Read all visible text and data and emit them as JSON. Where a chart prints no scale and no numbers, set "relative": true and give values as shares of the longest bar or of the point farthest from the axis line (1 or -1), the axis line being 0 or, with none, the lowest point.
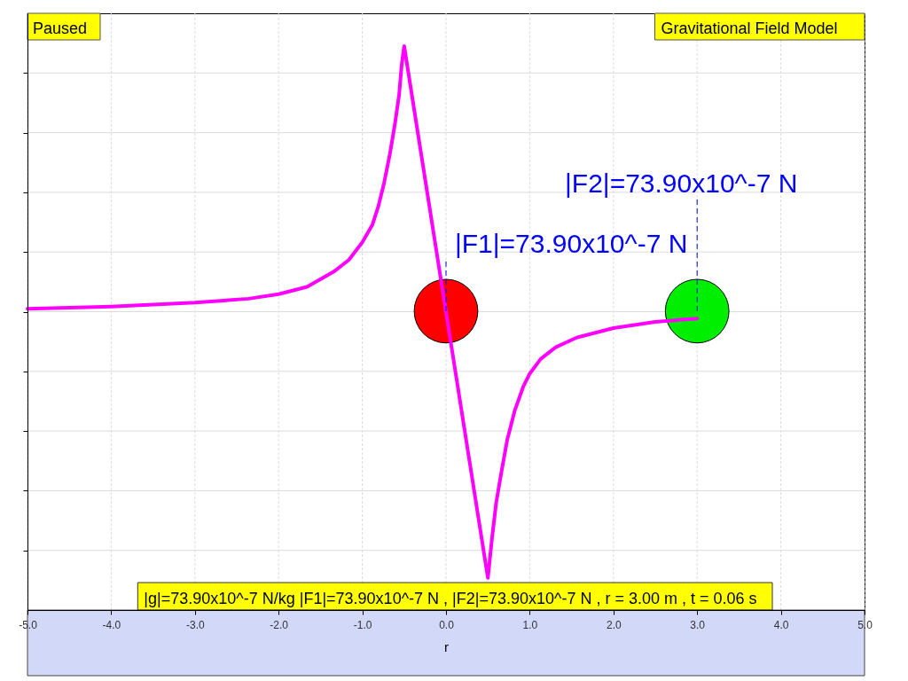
{
  "chart_data": {
    "type": "line",
    "title": "Gravitational Field Model",
    "xlabel": "r",
    "relative": true,
    "xlim": [
      -5,
      5
    ],
    "xticks": [
      {
        "value": -5,
        "label": "-5.0"
      },
      {
        "value": -4,
        "label": "-4.0"
      },
      {
        "value": -3,
        "label": "-3.0"
      },
      {
        "value": -2,
        "label": "-2.0"
      },
      {
        "value": -1,
        "label": "-1.0"
      },
      {
        "value": 0,
        "label": "0.0"
      },
      {
        "value": 1,
        "label": "1.0"
      },
      {
        "value": 2,
        "label": "2.0"
      },
      {
        "value": 3,
        "label": "3.0"
      },
      {
        "value": 4,
        "label": "4.0"
      },
      {
        "value": 5,
        "label": "5.0"
      }
    ],
    "grid": true,
    "tick_labels": "x",
    "annotations": [
      "Paused",
      "|g|=73.90x10^-7 N/kg |F1|=73.90x10^-7 N , |F2|=73.90x10^-7 N , r = 3.00 m , t = 0.06 s",
      {
        "text": "|F1|=73.90x10^-7 N",
        "x": 0,
        "y": 0.53
      },
      {
        "text": "|F2|=73.90x10^-7 N",
        "x": 3,
        "y": 0.53
      }
    ],
    "series": [
      {
        "type": "scatter",
        "color": "#ff0000",
        "marker": "circle",
        "x": [
          0
        ],
        "values": [
          0.53
        ]
      },
      {
        "type": "scatter",
        "color": "#00ee00",
        "marker": "circle",
        "x": [
          3
        ],
        "values": [
          0.53
        ]
      },
      {
        "color": "#ff00ff",
        "x": [
          -5,
          -4,
          -3,
          -2.36,
          -2,
          -1.66,
          -1.34,
          -1.16,
          -1,
          -0.88,
          -0.81,
          -0.74,
          -0.67,
          -0.61,
          -0.56,
          -0.53,
          -0.5,
          0.5,
          0.55,
          0.6,
          0.66,
          0.73,
          0.82,
          0.92,
          1,
          1.13,
          1.31,
          1.56,
          2,
          2.5,
          3
        ],
        "values": [
          0.534,
          0.538,
          0.545,
          0.552,
          0.56,
          0.573,
          0.6,
          0.621,
          0.652,
          0.683,
          0.715,
          0.757,
          0.809,
          0.862,
          0.914,
          0.966,
          1,
          0.057,
          0.128,
          0.191,
          0.243,
          0.301,
          0.353,
          0.395,
          0.419,
          0.445,
          0.466,
          0.483,
          0.5,
          0.511,
          0.517
        ]
      }
    ]
  }
}
